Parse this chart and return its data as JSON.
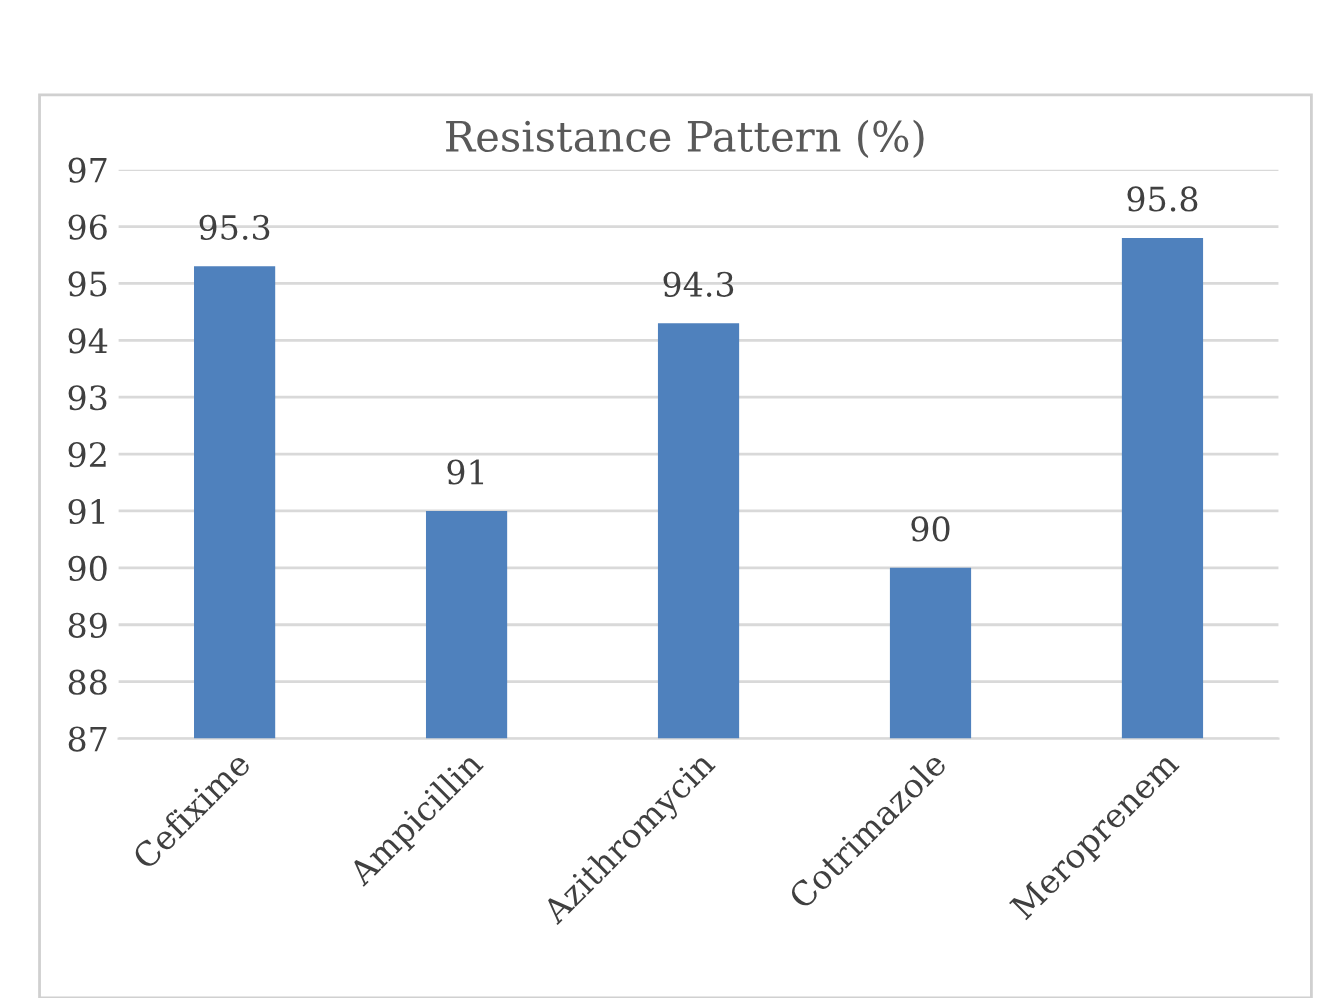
{
  "chart_data": {
    "type": "bar",
    "title": "Resistance Pattern (%)",
    "categories": [
      "Cefixime",
      "Ampicillin",
      "Azithromycin",
      "Cotrimazole",
      "Meroprenem"
    ],
    "values": [
      95.3,
      91,
      94.3,
      90,
      95.8
    ],
    "color": "#4f81bd",
    "ylim": [
      87,
      97
    ],
    "yticks": [
      87,
      88,
      89,
      90,
      91,
      92,
      93,
      94,
      95,
      96,
      97
    ],
    "grid": "y",
    "data_labels": true
  }
}
